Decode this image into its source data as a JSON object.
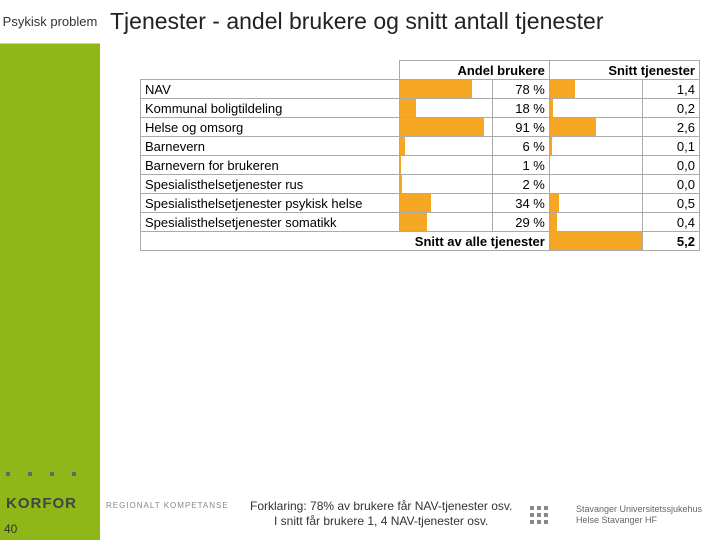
{
  "sidebar_label": "Psykisk problem",
  "title": "Tjenester - andel brukere og snitt antall tjenester",
  "page_number": "40",
  "colors": {
    "bar": "#f5a623",
    "sidebar": "#8eb717"
  },
  "table": {
    "headers": {
      "blank": "",
      "col1": "Andel brukere",
      "col2": "Snitt tjenester"
    },
    "bar1_max_pct": 100,
    "bar2_max_val": 5.2,
    "rows": [
      {
        "label": "NAV",
        "pct": 78,
        "pct_text": "78 %",
        "val": 1.4,
        "val_text": "1,4"
      },
      {
        "label": "Kommunal boligtildeling",
        "pct": 18,
        "pct_text": "18 %",
        "val": 0.2,
        "val_text": "0,2"
      },
      {
        "label": "Helse og omsorg",
        "pct": 91,
        "pct_text": "91 %",
        "val": 2.6,
        "val_text": "2,6"
      },
      {
        "label": "Barnevern",
        "pct": 6,
        "pct_text": "6 %",
        "val": 0.1,
        "val_text": "0,1"
      },
      {
        "label": "Barnevern for brukeren",
        "pct": 1,
        "pct_text": "1 %",
        "val": 0.0,
        "val_text": "0,0"
      },
      {
        "label": "Spesialisthelsetjenester rus",
        "pct": 2,
        "pct_text": "2 %",
        "val": 0.0,
        "val_text": "0,0"
      },
      {
        "label": "Spesialisthelsetjenester psykisk helse",
        "pct": 34,
        "pct_text": "34 %",
        "val": 0.5,
        "val_text": "0,5"
      },
      {
        "label": "Spesialisthelsetjenester somatikk",
        "pct": 29,
        "pct_text": "29 %",
        "val": 0.4,
        "val_text": "0,4"
      }
    ],
    "summary": {
      "label": "Snitt av alle tjenester",
      "val_text": "5,2"
    }
  },
  "footer": {
    "line1": "Forklaring: 78% av brukere får NAV-tjenester osv.",
    "line2": "I snitt får brukere 1, 4 NAV-tjenester osv."
  },
  "logo": "KORFOR",
  "logo_sub": "REGIONALT KOMPETANSE",
  "hospital": {
    "line1": "Stavanger Universitetssjukehus",
    "line2": "Helse Stavanger HF"
  }
}
